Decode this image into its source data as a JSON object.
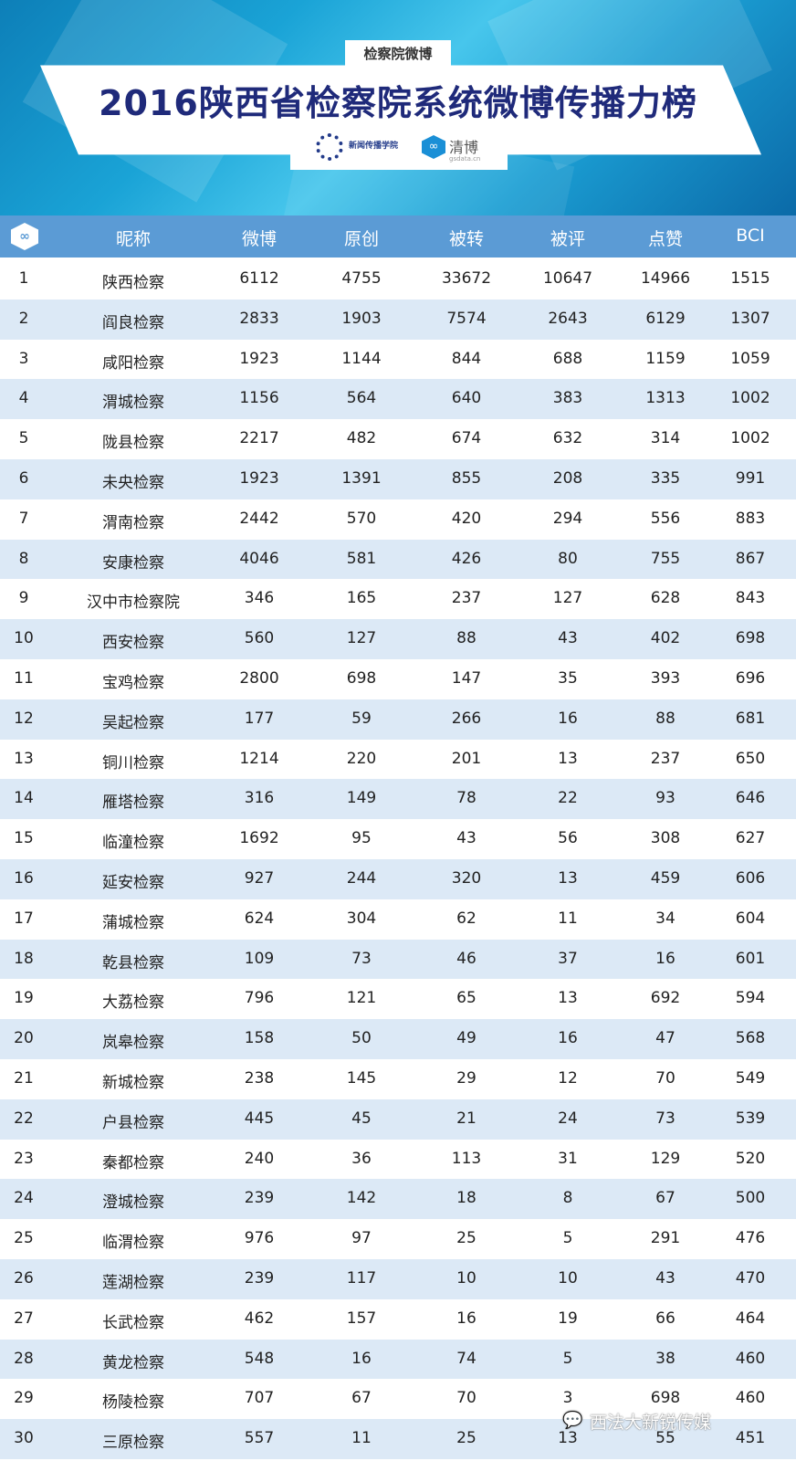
{
  "banner": {
    "tag": "检察院微博",
    "title": "2016陕西省检察院系统微博传播力榜",
    "logo_left_text": "新闻传播学院",
    "logo_right_text": "清博",
    "logo_right_sub": "gsdata.cn"
  },
  "colors": {
    "header_bg": "#5b9bd5",
    "row_alt": "#dce9f6",
    "title": "#1f2a7a"
  },
  "header_icon": "qingbo-logo-icon",
  "watermark": "西法大新锐传媒",
  "chart_data": {
    "type": "table",
    "columns": [
      "昵称",
      "微博",
      "原创",
      "被转",
      "被评",
      "点赞",
      "BCI"
    ],
    "rows": [
      [
        "1",
        "陕西检察",
        "6112",
        "4755",
        "33672",
        "10647",
        "14966",
        "1515"
      ],
      [
        "2",
        "阎良检察",
        "2833",
        "1903",
        "7574",
        "2643",
        "6129",
        "1307"
      ],
      [
        "3",
        "咸阳检察",
        "1923",
        "1144",
        "844",
        "688",
        "1159",
        "1059"
      ],
      [
        "4",
        "渭城检察",
        "1156",
        "564",
        "640",
        "383",
        "1313",
        "1002"
      ],
      [
        "5",
        "陇县检察",
        "2217",
        "482",
        "674",
        "632",
        "314",
        "1002"
      ],
      [
        "6",
        "未央检察",
        "1923",
        "1391",
        "855",
        "208",
        "335",
        "991"
      ],
      [
        "7",
        "渭南检察",
        "2442",
        "570",
        "420",
        "294",
        "556",
        "883"
      ],
      [
        "8",
        "安康检察",
        "4046",
        "581",
        "426",
        "80",
        "755",
        "867"
      ],
      [
        "9",
        "汉中市检察院",
        "346",
        "165",
        "237",
        "127",
        "628",
        "843"
      ],
      [
        "10",
        "西安检察",
        "560",
        "127",
        "88",
        "43",
        "402",
        "698"
      ],
      [
        "11",
        "宝鸡检察",
        "2800",
        "698",
        "147",
        "35",
        "393",
        "696"
      ],
      [
        "12",
        "吴起检察",
        "177",
        "59",
        "266",
        "16",
        "88",
        "681"
      ],
      [
        "13",
        "铜川检察",
        "1214",
        "220",
        "201",
        "13",
        "237",
        "650"
      ],
      [
        "14",
        "雁塔检察",
        "316",
        "149",
        "78",
        "22",
        "93",
        "646"
      ],
      [
        "15",
        "临潼检察",
        "1692",
        "95",
        "43",
        "56",
        "308",
        "627"
      ],
      [
        "16",
        "延安检察",
        "927",
        "244",
        "320",
        "13",
        "459",
        "606"
      ],
      [
        "17",
        "蒲城检察",
        "624",
        "304",
        "62",
        "11",
        "34",
        "604"
      ],
      [
        "18",
        "乾县检察",
        "109",
        "73",
        "46",
        "37",
        "16",
        "601"
      ],
      [
        "19",
        "大荔检察",
        "796",
        "121",
        "65",
        "13",
        "692",
        "594"
      ],
      [
        "20",
        "岚皋检察",
        "158",
        "50",
        "49",
        "16",
        "47",
        "568"
      ],
      [
        "21",
        "新城检察",
        "238",
        "145",
        "29",
        "12",
        "70",
        "549"
      ],
      [
        "22",
        "户县检察",
        "445",
        "45",
        "21",
        "24",
        "73",
        "539"
      ],
      [
        "23",
        "秦都检察",
        "240",
        "36",
        "113",
        "31",
        "129",
        "520"
      ],
      [
        "24",
        "澄城检察",
        "239",
        "142",
        "18",
        "8",
        "67",
        "500"
      ],
      [
        "25",
        "临渭检察",
        "976",
        "97",
        "25",
        "5",
        "291",
        "476"
      ],
      [
        "26",
        "莲湖检察",
        "239",
        "117",
        "10",
        "10",
        "43",
        "470"
      ],
      [
        "27",
        "长武检察",
        "462",
        "157",
        "16",
        "19",
        "66",
        "464"
      ],
      [
        "28",
        "黄龙检察",
        "548",
        "16",
        "74",
        "5",
        "38",
        "460"
      ],
      [
        "29",
        "杨陵检察",
        "707",
        "67",
        "70",
        "3",
        "698",
        "460"
      ],
      [
        "30",
        "三原检察",
        "557",
        "11",
        "25",
        "13",
        "55",
        "451"
      ]
    ]
  }
}
